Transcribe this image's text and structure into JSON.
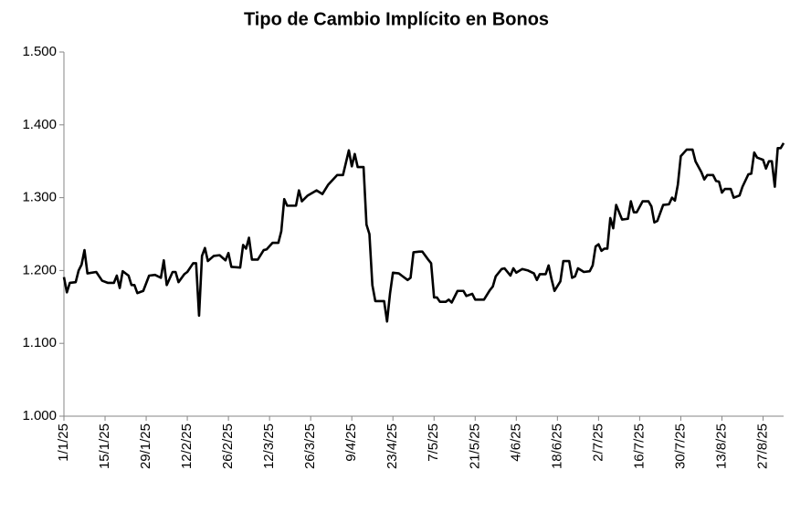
{
  "chart_data": {
    "type": "line",
    "title": "Tipo de Cambio Implícito en Bonos",
    "x": [
      "1/1/25",
      "2/1/25",
      "3/1/25",
      "5/1/25",
      "6/1/25",
      "7/1/25",
      "8/1/25",
      "9/1/25",
      "12/1/25",
      "14/1/25",
      "16/1/25",
      "18/1/25",
      "19/1/25",
      "20/1/25",
      "21/1/25",
      "23/1/25",
      "24/1/25",
      "25/1/25",
      "26/1/25",
      "28/1/25",
      "30/1/25",
      "1/2/25",
      "3/2/25",
      "4/2/25",
      "5/2/25",
      "7/2/25",
      "8/2/25",
      "9/2/25",
      "11/2/25",
      "12/2/25",
      "14/2/25",
      "15/2/25",
      "16/2/25",
      "17/2/25",
      "18/2/25",
      "19/2/25",
      "21/2/25",
      "23/2/25",
      "25/2/25",
      "26/2/25",
      "27/2/25",
      "2/3/25",
      "3/3/25",
      "4/3/25",
      "5/3/25",
      "6/3/25",
      "8/3/25",
      "10/3/25",
      "11/3/25",
      "13/3/25",
      "15/3/25",
      "16/3/25",
      "17/3/25",
      "18/3/25",
      "21/3/25",
      "22/3/25",
      "23/3/25",
      "25/3/25",
      "28/3/25",
      "30/3/25",
      "1/4/25",
      "4/4/25",
      "6/4/25",
      "8/4/25",
      "9/4/25",
      "10/4/25",
      "11/4/25",
      "13/4/25",
      "14/4/25",
      "15/4/25",
      "16/4/25",
      "17/4/25",
      "20/4/25",
      "21/4/25",
      "22/4/25",
      "23/4/25",
      "25/4/25",
      "26/4/25",
      "28/4/25",
      "29/4/25",
      "30/4/25",
      "2/5/25",
      "3/5/25",
      "5/5/25",
      "6/5/25",
      "7/5/25",
      "8/5/25",
      "9/5/25",
      "11/5/25",
      "12/5/25",
      "13/5/25",
      "15/5/25",
      "17/5/25",
      "18/5/25",
      "20/5/25",
      "21/5/25",
      "24/5/25",
      "26/5/25",
      "27/5/25",
      "28/5/25",
      "30/5/25",
      "31/5/25",
      "2/6/25",
      "3/6/25",
      "4/6/25",
      "6/6/25",
      "8/6/25",
      "10/6/25",
      "11/6/25",
      "12/6/25",
      "14/6/25",
      "15/6/25",
      "16/6/25",
      "17/6/25",
      "19/6/25",
      "20/6/25",
      "22/6/25",
      "23/6/25",
      "24/6/25",
      "25/6/25",
      "27/6/25",
      "29/6/25",
      "30/6/25",
      "1/7/25",
      "2/7/25",
      "3/7/25",
      "4/7/25",
      "5/7/25",
      "6/7/25",
      "7/7/25",
      "8/7/25",
      "10/7/25",
      "12/7/25",
      "13/7/25",
      "14/7/25",
      "15/7/25",
      "17/7/25",
      "19/7/25",
      "20/7/25",
      "21/7/25",
      "22/7/25",
      "24/7/25",
      "26/7/25",
      "27/7/25",
      "28/7/25",
      "29/7/25",
      "30/7/25",
      "1/8/25",
      "3/8/25",
      "4/8/25",
      "6/8/25",
      "7/8/25",
      "8/8/25",
      "10/8/25",
      "11/8/25",
      "12/8/25",
      "13/8/25",
      "14/8/25",
      "16/8/25",
      "17/8/25",
      "19/8/25",
      "20/8/25",
      "22/8/25",
      "23/8/25",
      "24/8/25",
      "25/8/25",
      "27/8/25",
      "28/8/25",
      "29/8/25",
      "30/8/25",
      "31/8/25",
      "1/9/25",
      "2/9/25",
      "3/9/25"
    ],
    "values": [
      1.191,
      1.17,
      1.183,
      1.184,
      1.2,
      1.208,
      1.228,
      1.196,
      1.198,
      1.186,
      1.183,
      1.183,
      1.193,
      1.176,
      1.199,
      1.193,
      1.18,
      1.18,
      1.169,
      1.172,
      1.193,
      1.194,
      1.19,
      1.214,
      1.18,
      1.198,
      1.198,
      1.184,
      1.195,
      1.198,
      1.21,
      1.21,
      1.138,
      1.22,
      1.231,
      1.213,
      1.22,
      1.221,
      1.214,
      1.224,
      1.205,
      1.204,
      1.235,
      1.23,
      1.245,
      1.215,
      1.215,
      1.228,
      1.229,
      1.238,
      1.238,
      1.254,
      1.298,
      1.289,
      1.289,
      1.31,
      1.295,
      1.303,
      1.31,
      1.305,
      1.318,
      1.331,
      1.331,
      1.365,
      1.343,
      1.36,
      1.342,
      1.342,
      1.263,
      1.25,
      1.18,
      1.158,
      1.158,
      1.13,
      1.168,
      1.197,
      1.196,
      1.193,
      1.187,
      1.19,
      1.225,
      1.226,
      1.226,
      1.215,
      1.21,
      1.163,
      1.163,
      1.157,
      1.157,
      1.16,
      1.156,
      1.172,
      1.172,
      1.165,
      1.168,
      1.16,
      1.16,
      1.173,
      1.178,
      1.192,
      1.202,
      1.203,
      1.193,
      1.203,
      1.197,
      1.202,
      1.2,
      1.196,
      1.187,
      1.195,
      1.195,
      1.207,
      1.188,
      1.172,
      1.185,
      1.213,
      1.213,
      1.19,
      1.192,
      1.203,
      1.198,
      1.199,
      1.207,
      1.233,
      1.236,
      1.227,
      1.23,
      1.23,
      1.272,
      1.258,
      1.29,
      1.27,
      1.271,
      1.295,
      1.28,
      1.28,
      1.295,
      1.295,
      1.288,
      1.266,
      1.268,
      1.29,
      1.291,
      1.3,
      1.296,
      1.318,
      1.357,
      1.366,
      1.366,
      1.35,
      1.335,
      1.325,
      1.331,
      1.331,
      1.323,
      1.322,
      1.307,
      1.312,
      1.312,
      1.3,
      1.303,
      1.315,
      1.332,
      1.333,
      1.362,
      1.355,
      1.352,
      1.34,
      1.35,
      1.35,
      1.315,
      1.368,
      1.368,
      1.375
    ],
    "color": "#000000",
    "xlim": [
      "1/1/25",
      "3/9/25"
    ],
    "xticks": [
      "1/1/25",
      "15/1/25",
      "29/1/25",
      "12/2/25",
      "26/2/25",
      "12/3/25",
      "26/3/25",
      "9/4/25",
      "23/4/25",
      "7/5/25",
      "21/5/25",
      "4/6/25",
      "18/6/25",
      "2/7/25",
      "16/7/25",
      "30/7/25",
      "13/8/25",
      "27/8/25"
    ],
    "ylim": [
      1.0,
      1.5
    ],
    "yticks": [
      {
        "value": 1.0,
        "label": "1.000"
      },
      {
        "value": 1.1,
        "label": "1.100"
      },
      {
        "value": 1.2,
        "label": "1.200"
      },
      {
        "value": 1.3,
        "label": "1.300"
      },
      {
        "value": 1.4,
        "label": "1.400"
      },
      {
        "value": 1.5,
        "label": "1.500"
      }
    ],
    "grid": false
  }
}
